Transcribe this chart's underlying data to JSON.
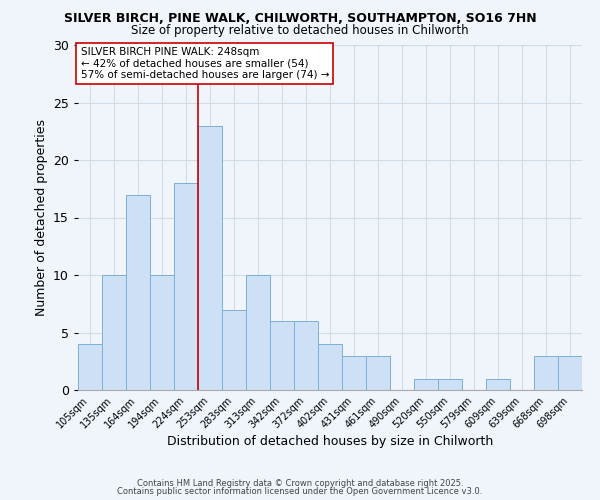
{
  "title1": "SILVER BIRCH, PINE WALK, CHILWORTH, SOUTHAMPTON, SO16 7HN",
  "title2": "Size of property relative to detached houses in Chilworth",
  "xlabel": "Distribution of detached houses by size in Chilworth",
  "ylabel": "Number of detached properties",
  "bin_labels": [
    "105sqm",
    "135sqm",
    "164sqm",
    "194sqm",
    "224sqm",
    "253sqm",
    "283sqm",
    "313sqm",
    "342sqm",
    "372sqm",
    "402sqm",
    "431sqm",
    "461sqm",
    "490sqm",
    "520sqm",
    "550sqm",
    "579sqm",
    "609sqm",
    "639sqm",
    "668sqm",
    "698sqm"
  ],
  "bar_heights": [
    4,
    10,
    17,
    10,
    18,
    23,
    7,
    10,
    6,
    6,
    4,
    3,
    3,
    0,
    1,
    1,
    0,
    1,
    0,
    3,
    3
  ],
  "bar_color": "#cde0f5",
  "bar_edge_color": "#7ab0d4",
  "grid_color": "#d0dce8",
  "vline_x_idx": 5,
  "vline_color": "#cc0000",
  "annotation_title": "SILVER BIRCH PINE WALK: 248sqm",
  "annotation_line1": "← 42% of detached houses are smaller (54)",
  "annotation_line2": "57% of semi-detached houses are larger (74) →",
  "annotation_box_color": "#ffffff",
  "annotation_box_edge": "#cc0000",
  "footer1": "Contains HM Land Registry data © Crown copyright and database right 2025.",
  "footer2": "Contains public sector information licensed under the Open Government Licence v3.0.",
  "ylim": [
    0,
    30
  ],
  "yticks": [
    0,
    5,
    10,
    15,
    20,
    25,
    30
  ],
  "background_color": "#f0f4fb"
}
